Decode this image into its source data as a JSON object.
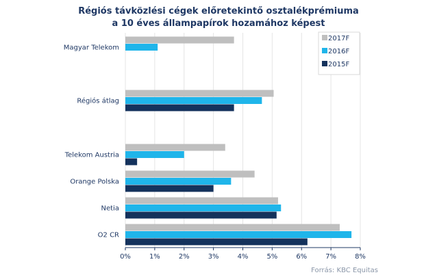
{
  "chart_data": {
    "type": "bar",
    "orientation": "horizontal",
    "title_lines": [
      "Régiós távközlési cégek előretekintő osztalékprémiuma",
      "a 10 éves állampapírok hozamához képest"
    ],
    "categories": [
      "Magyar Telekom",
      "Régiós átlag",
      "Telekom Austria",
      "Orange Polska",
      "Netia",
      "O2 CR"
    ],
    "series": [
      {
        "name": "2017F",
        "color": "#bfbfbf",
        "values": [
          3.7,
          5.05,
          3.4,
          4.4,
          5.2,
          7.3
        ]
      },
      {
        "name": "2016F",
        "color": "#1fb5ea",
        "values": [
          1.1,
          4.65,
          2.0,
          3.6,
          5.3,
          7.7
        ]
      },
      {
        "name": "2015F",
        "color": "#14325c",
        "values": [
          null,
          3.7,
          0.4,
          3.0,
          5.15,
          6.2
        ]
      }
    ],
    "xlim": [
      0,
      8
    ],
    "x_ticks": [
      "0%",
      "1%",
      "2%",
      "3%",
      "4%",
      "5%",
      "6%",
      "7%",
      "8%"
    ],
    "legend_position": "top-right",
    "source": "Forrás: KBC Equitas",
    "grid": true
  }
}
